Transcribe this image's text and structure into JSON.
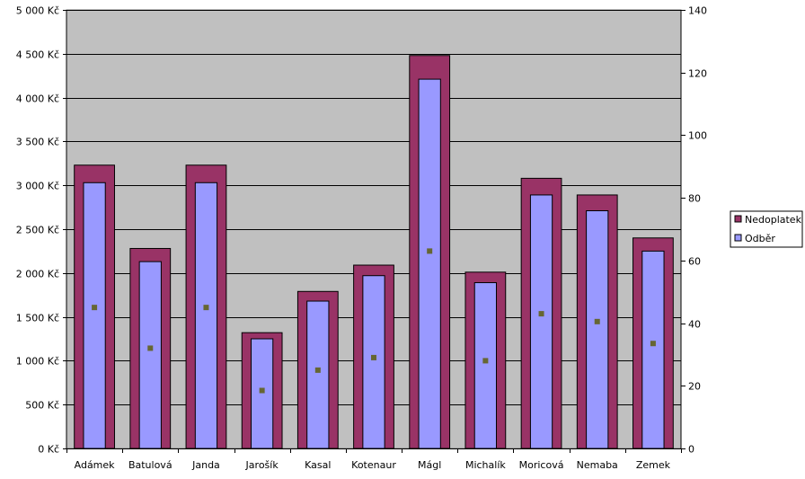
{
  "chart_data": {
    "type": "bar",
    "title": "",
    "xlabel": "",
    "ylabel": "",
    "categories": [
      "Adámek",
      "Batulová",
      "Janda",
      "Jarošík",
      "Kasal",
      "Kotenaur",
      "Mágl",
      "Michalík",
      "Moricová",
      "Nemaba",
      "Zemek"
    ],
    "series": [
      {
        "name": "Nedoplatek",
        "axis": "left",
        "color": "#993366",
        "values": [
          3230,
          2280,
          3230,
          1320,
          1790,
          2090,
          4480,
          2010,
          3080,
          2890,
          2400
        ]
      },
      {
        "name": "Odběr",
        "axis": "left",
        "color": "#9999ff",
        "values": [
          3030,
          2130,
          3030,
          1250,
          1680,
          1970,
          4210,
          1890,
          2890,
          2710,
          2250
        ]
      },
      {
        "axis": "right",
        "color": "#666633",
        "marker": "square",
        "values": [
          45,
          32,
          45,
          18.5,
          25,
          29,
          63,
          28,
          43,
          40.5,
          33.5
        ]
      }
    ],
    "y_left": {
      "ylim": [
        0,
        5000
      ],
      "ticks": [
        0,
        500,
        1000,
        1500,
        2000,
        2500,
        3000,
        3500,
        4000,
        4500,
        5000
      ],
      "tick_labels": [
        "0 Kč",
        "500 Kč",
        "1 000 Kč",
        "1 500 Kč",
        "2 000 Kč",
        "2 500 Kč",
        "3 000 Kč",
        "3 500 Kč",
        "4 000 Kč",
        "4 500 Kč",
        "5 000 Kč"
      ]
    },
    "y_right": {
      "ylim": [
        0,
        140
      ],
      "ticks": [
        0,
        20,
        40,
        60,
        80,
        100,
        120,
        140
      ],
      "tick_labels": [
        "0",
        "20",
        "40",
        "60",
        "80",
        "100",
        "120",
        "140"
      ]
    },
    "grid": true,
    "plot_background": "#c0c0c0",
    "legend": {
      "placement": "right",
      "entries": [
        "Nedoplatek",
        "Odběr"
      ]
    }
  }
}
